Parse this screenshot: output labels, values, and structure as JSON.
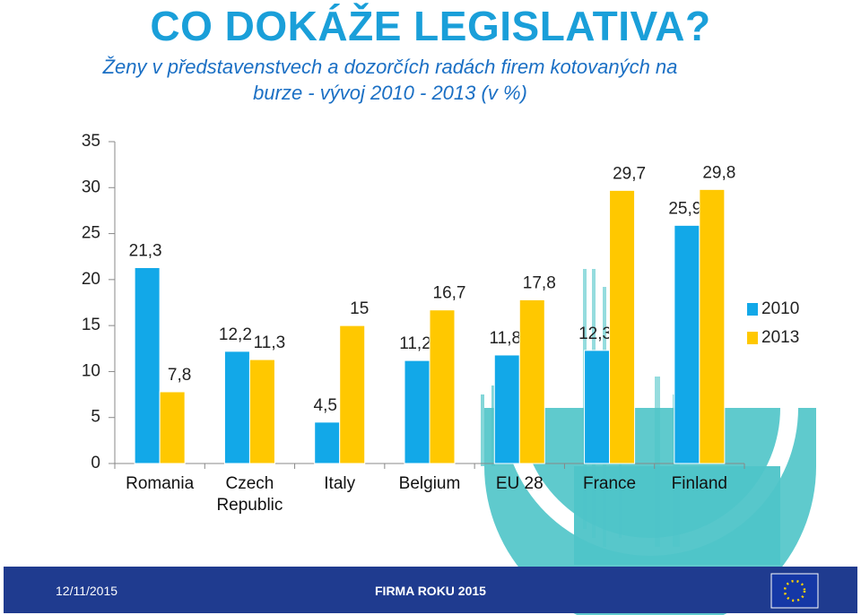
{
  "chart_data": {
    "type": "bar",
    "title": "CO DOKÁŽE LEGISLATIVA?",
    "subtitle": "Ženy v představenstvech a dozorčích radách firem kotovaných na burze - vývoj 2010 - 2013 (v %)",
    "categories": [
      "Romania",
      "Czech Republic",
      "Italy",
      "Belgium",
      "EU 28",
      "France",
      "Finland"
    ],
    "series": [
      {
        "name": "2010",
        "color": "#12a8e8",
        "values": [
          21.3,
          12.2,
          4.5,
          11.2,
          11.8,
          12.3,
          25.9
        ],
        "value_labels": [
          "21,3",
          "12,2",
          "4,5",
          "11,2",
          "11,8",
          "12,3",
          "25,9"
        ]
      },
      {
        "name": "2013",
        "color": "#ffc800",
        "values": [
          7.8,
          11.3,
          15,
          16.7,
          17.8,
          29.7,
          29.8
        ],
        "value_labels": [
          "7,8",
          "11,3",
          "15",
          "16,7",
          "17,8",
          "29,7",
          "29,8"
        ]
      }
    ],
    "ylim": [
      0,
      35
    ],
    "yticks": [
      0,
      5,
      10,
      15,
      20,
      25,
      30,
      35
    ],
    "legend": "right"
  },
  "footer": {
    "date": "12/11/2015",
    "event": "FIRMA ROKU 2015"
  }
}
